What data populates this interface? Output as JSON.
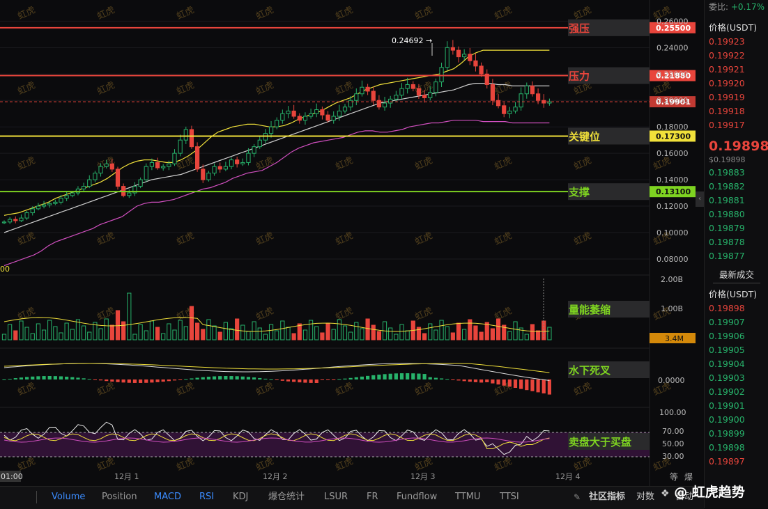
{
  "chart_data": {
    "type": "candlestick",
    "price_axis": {
      "ticks": [
        0.26,
        0.24,
        0.22,
        0.2,
        0.18,
        0.16,
        0.14,
        0.12,
        0.1,
        0.08
      ],
      "labels": [
        "0.26000",
        "0.24000",
        "0.22000",
        "0.20000",
        "0.18000",
        "0.16000",
        "0.14000",
        "0.12000",
        "0.10000",
        "0.08000"
      ],
      "ylim": [
        0.0705,
        0.276
      ]
    },
    "x_labels": [
      "12月 1",
      "12月 2",
      "12月 3",
      "12月 4"
    ],
    "left_time_label": "01:00",
    "left_edge_label": "00",
    "peak_label": "0.24692 →",
    "levels": [
      {
        "name": "强压",
        "value": 0.255,
        "value_label": "0.25500",
        "color": "#e8453c"
      },
      {
        "name": "压力",
        "value": 0.2188,
        "value_label": "0.21880",
        "color": "#e8453c"
      },
      {
        "name": "关键位",
        "value": 0.173,
        "value_label": "0.17300",
        "color": "#f0e03a"
      },
      {
        "name": "支撑",
        "value": 0.131,
        "value_label": "0.13100",
        "color": "#7ed321"
      }
    ],
    "current_price": {
      "value": 0.19901,
      "label": "0.19901"
    },
    "closes": [
      0.108,
      0.11,
      0.109,
      0.111,
      0.115,
      0.118,
      0.12,
      0.121,
      0.122,
      0.123,
      0.126,
      0.128,
      0.13,
      0.133,
      0.135,
      0.14,
      0.145,
      0.15,
      0.152,
      0.148,
      0.135,
      0.128,
      0.13,
      0.135,
      0.14,
      0.15,
      0.153,
      0.149,
      0.15,
      0.152,
      0.16,
      0.17,
      0.178,
      0.165,
      0.148,
      0.14,
      0.145,
      0.15,
      0.148,
      0.15,
      0.155,
      0.152,
      0.153,
      0.16,
      0.165,
      0.17,
      0.175,
      0.18,
      0.185,
      0.19,
      0.192,
      0.188,
      0.185,
      0.188,
      0.19,
      0.193,
      0.189,
      0.185,
      0.188,
      0.192,
      0.195,
      0.2,
      0.205,
      0.21,
      0.207,
      0.2,
      0.195,
      0.198,
      0.201,
      0.204,
      0.209,
      0.212,
      0.209,
      0.204,
      0.202,
      0.206,
      0.214,
      0.225,
      0.24,
      0.238,
      0.233,
      0.235,
      0.23,
      0.226,
      0.22,
      0.212,
      0.2,
      0.196,
      0.19,
      0.192,
      0.195,
      0.205,
      0.211,
      0.205,
      0.2,
      0.198,
      0.199
    ],
    "bb_upper": [
      0.113,
      0.114,
      0.115,
      0.117,
      0.119,
      0.121,
      0.123,
      0.126,
      0.128,
      0.13,
      0.132,
      0.134,
      0.136,
      0.138,
      0.141,
      0.145,
      0.149,
      0.152,
      0.154,
      0.155,
      0.155,
      0.154,
      0.153,
      0.153,
      0.155,
      0.158,
      0.162,
      0.167,
      0.172,
      0.176,
      0.178,
      0.18,
      0.181,
      0.182,
      0.182,
      0.181,
      0.18,
      0.18,
      0.181,
      0.183,
      0.186,
      0.188,
      0.19,
      0.192,
      0.195,
      0.198,
      0.2,
      0.202,
      0.205,
      0.208,
      0.21,
      0.212,
      0.213,
      0.214,
      0.215,
      0.216,
      0.217,
      0.218,
      0.219,
      0.22,
      0.222,
      0.224,
      0.228,
      0.233,
      0.236,
      0.238,
      0.238,
      0.238,
      0.238,
      0.238,
      0.238,
      0.238,
      0.238,
      0.238,
      0.238
    ],
    "bb_mid": [
      0.1,
      0.102,
      0.104,
      0.106,
      0.108,
      0.11,
      0.112,
      0.114,
      0.116,
      0.118,
      0.12,
      0.122,
      0.124,
      0.126,
      0.128,
      0.13,
      0.132,
      0.134,
      0.136,
      0.138,
      0.14,
      0.141,
      0.142,
      0.143,
      0.144,
      0.146,
      0.148,
      0.15,
      0.152,
      0.154,
      0.156,
      0.158,
      0.16,
      0.162,
      0.164,
      0.166,
      0.168,
      0.17,
      0.172,
      0.174,
      0.176,
      0.178,
      0.18,
      0.182,
      0.184,
      0.186,
      0.188,
      0.19,
      0.192,
      0.194,
      0.196,
      0.198,
      0.199,
      0.2,
      0.201,
      0.202,
      0.203,
      0.204,
      0.205,
      0.206,
      0.207,
      0.208,
      0.21,
      0.212,
      0.213,
      0.213,
      0.213,
      0.212,
      0.212,
      0.211,
      0.211,
      0.211,
      0.211,
      0.211,
      0.211
    ],
    "bb_lower": [
      0.075,
      0.077,
      0.079,
      0.081,
      0.083,
      0.086,
      0.09,
      0.093,
      0.095,
      0.097,
      0.099,
      0.101,
      0.103,
      0.106,
      0.108,
      0.11,
      0.112,
      0.116,
      0.12,
      0.122,
      0.123,
      0.123,
      0.124,
      0.125,
      0.127,
      0.129,
      0.131,
      0.133,
      0.134,
      0.136,
      0.138,
      0.141,
      0.143,
      0.145,
      0.146,
      0.147,
      0.15,
      0.153,
      0.157,
      0.161,
      0.164,
      0.166,
      0.168,
      0.169,
      0.17,
      0.171,
      0.172,
      0.174,
      0.176,
      0.177,
      0.177,
      0.176,
      0.176,
      0.177,
      0.178,
      0.18,
      0.181,
      0.182,
      0.183,
      0.183,
      0.184,
      0.185,
      0.185,
      0.185,
      0.185,
      0.184,
      0.184,
      0.184,
      0.184,
      0.183,
      0.183,
      0.183,
      0.183,
      0.183,
      0.183
    ],
    "volume": {
      "ticks": [
        "2.00B",
        "1.00B"
      ],
      "current_label": "3.4M",
      "annotation": "量能萎缩"
    },
    "macd": {
      "tick": "0.0000",
      "annotation": "水下死叉"
    },
    "rsi": {
      "ticks": [
        "100.00",
        "70.00",
        "50.00",
        "30.00"
      ],
      "annotation": "卖盘大于买盘"
    }
  },
  "watermark": "虹虎",
  "sidebar": {
    "ratio_label": "委比:",
    "ratio_value": "+0.17%",
    "ask_header": "价格(USDT)",
    "asks": [
      "0.19923",
      "0.19922",
      "0.19921",
      "0.19920",
      "0.19919",
      "0.19918",
      "0.19917"
    ],
    "last_price": "0.19898",
    "last_sub": "$0.19898",
    "bids": [
      "0.19883",
      "0.19882",
      "0.19881",
      "0.19880",
      "0.19879",
      "0.19878",
      "0.19877"
    ],
    "trades_title": "最新成交",
    "trades_header": "价格(USDT)",
    "trades": [
      {
        "p": "0.19898",
        "c": "red"
      },
      {
        "p": "0.19907",
        "c": "green"
      },
      {
        "p": "0.19906",
        "c": "green"
      },
      {
        "p": "0.19905",
        "c": "green"
      },
      {
        "p": "0.19904",
        "c": "green"
      },
      {
        "p": "0.19903",
        "c": "green"
      },
      {
        "p": "0.19902",
        "c": "green"
      },
      {
        "p": "0.19901",
        "c": "green"
      },
      {
        "p": "0.19900",
        "c": "green"
      },
      {
        "p": "0.19899",
        "c": "green"
      },
      {
        "p": "0.19898",
        "c": "green"
      },
      {
        "p": "0.19897",
        "c": "red"
      }
    ]
  },
  "bottombar": {
    "tabs": [
      {
        "label": "Volume",
        "active": true
      },
      {
        "label": "Position",
        "active": false
      },
      {
        "label": "MACD",
        "active": true
      },
      {
        "label": "RSI",
        "active": true
      },
      {
        "label": "KDJ",
        "active": false
      },
      {
        "label": "爆仓统计",
        "active": false
      },
      {
        "label": "LSUR",
        "active": false
      },
      {
        "label": "FR",
        "active": false
      },
      {
        "label": "Fundflow",
        "active": false
      },
      {
        "label": "TTMU",
        "active": false
      },
      {
        "label": "TTSI",
        "active": false
      }
    ],
    "community": "社区指标",
    "right_labels": [
      "对数",
      "自动"
    ],
    "right_corner": [
      "等",
      "爆"
    ],
    "brand": "@ 虹虎趋势"
  },
  "colors": {
    "up": "#27b36b",
    "down": "#e8453c",
    "bb_upper": "#f0e03a",
    "bb_mid": "#cfcfcf",
    "bb_lower": "#d04fbf"
  }
}
